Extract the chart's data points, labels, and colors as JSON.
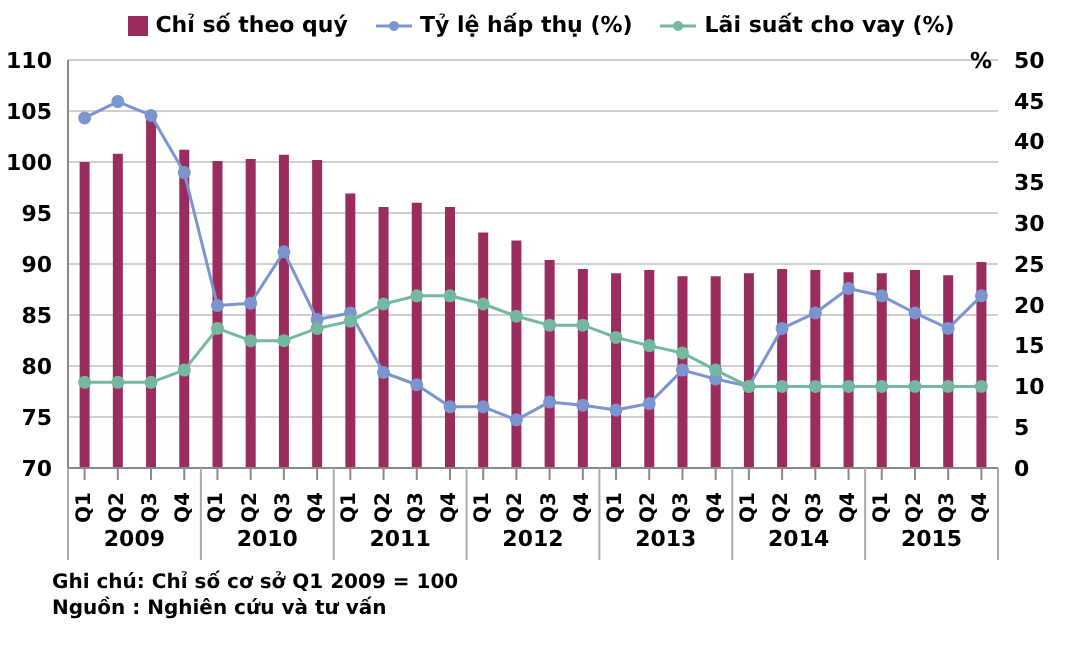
{
  "chart_data": {
    "type": "bar",
    "categories": [
      "Q1",
      "Q2",
      "Q3",
      "Q4",
      "Q1",
      "Q2",
      "Q3",
      "Q4",
      "Q1",
      "Q2",
      "Q3",
      "Q4",
      "Q1",
      "Q2",
      "Q3",
      "Q4",
      "Q1",
      "Q2",
      "Q3",
      "Q4",
      "Q1",
      "Q2",
      "Q3",
      "Q4",
      "Q1",
      "Q2",
      "Q3",
      "Q4"
    ],
    "series": [
      {
        "name": "Chỉ số theo quý",
        "color": "#9b2d5e",
        "values": [
          100,
          100.8,
          105,
          101.2,
          100.1,
          100.3,
          100.7,
          100.2,
          96.9,
          95.6,
          96,
          95.6,
          93.1,
          92.3,
          90.4,
          89.5,
          89.1,
          89.4,
          88.8,
          88.8,
          89.1,
          89.5,
          89.4,
          89.2,
          89.1,
          89.4,
          88.9,
          90.2
        ]
      },
      {
        "name": "Tỷ lệ hấp thụ (%)",
        "type": "line",
        "axis": "y2",
        "color": "#7b95d0",
        "values": [
          42.9,
          44.9,
          43.2,
          36.2,
          19.9,
          20.2,
          26.5,
          18.2,
          19,
          11.7,
          10.2,
          7.5,
          7.5,
          5.9,
          8.1,
          7.7,
          7.1,
          7.9,
          12,
          10.9,
          10,
          17.1,
          19,
          22,
          21.1,
          19,
          17.1,
          21.1
        ]
      },
      {
        "name": "Lãi suất cho vay (%)",
        "type": "line",
        "axis": "y2",
        "color": "#74b8a0",
        "values": [
          10.5,
          10.5,
          10.5,
          12,
          17.1,
          15.6,
          15.6,
          17.1,
          18,
          20.1,
          21.1,
          21.1,
          20.1,
          18.6,
          17.5,
          17.5,
          16,
          15,
          14.1,
          12,
          10,
          10,
          10,
          10,
          10,
          10,
          10,
          10
        ]
      }
    ],
    "ylim": [
      70,
      110
    ],
    "yticks": [
      70,
      75,
      80,
      85,
      90,
      95,
      100,
      105,
      110
    ],
    "y2lim": [
      0,
      50
    ],
    "y2ticks": [
      0,
      5,
      10,
      15,
      20,
      25,
      30,
      35,
      40,
      45,
      50
    ],
    "y2label": "%",
    "grid": "y",
    "legend": "top",
    "marker": "circle",
    "annotations": [
      "2009",
      "2010",
      "2011",
      "2012",
      "2013",
      "2014",
      "2015",
      "Ghi chú: Chỉ số cơ sở Q1 2009 = 100",
      "Nguồn : Nghiên cứu và tư vấn"
    ]
  }
}
